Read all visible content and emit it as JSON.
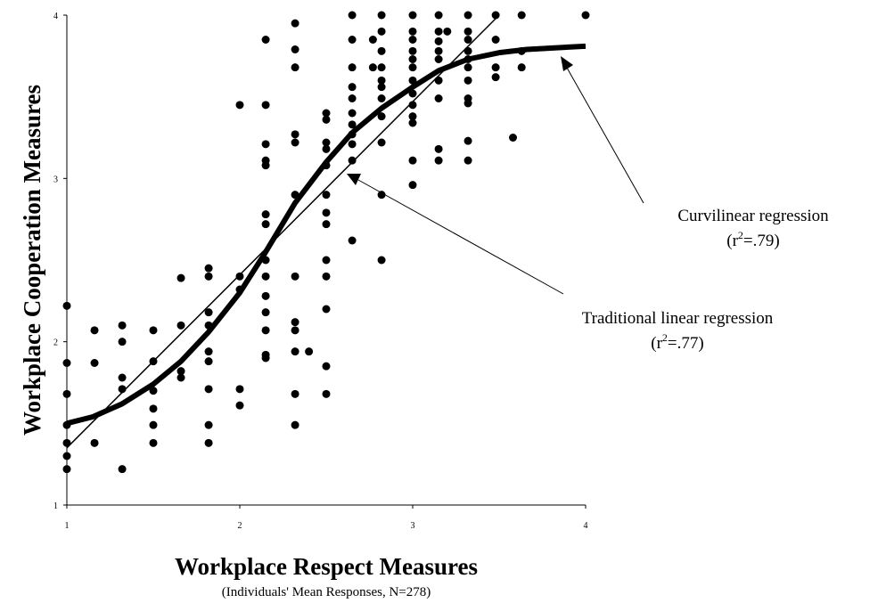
{
  "chart_data": {
    "type": "scatter",
    "xlabel": "Workplace Respect Measures",
    "subtitle": "(Individuals' Mean Responses, N=278)",
    "ylabel": "Workplace Cooperation Measures",
    "xlim": [
      1,
      4
    ],
    "ylim": [
      1,
      4
    ],
    "xticks": [
      1,
      2,
      3,
      4
    ],
    "yticks": [
      1,
      2,
      3,
      4
    ],
    "point_color": "#000000",
    "points": {
      "x": [
        1,
        1,
        1,
        1,
        1,
        1,
        1,
        1.16,
        1.16,
        1.16,
        1.32,
        1.32,
        1.32,
        1.32,
        1.32,
        1.5,
        1.5,
        1.5,
        1.5,
        1.5,
        1.5,
        1.66,
        1.66,
        1.66,
        1.66,
        1.82,
        1.82,
        1.82,
        1.82,
        1.82,
        1.82,
        1.82,
        1.82,
        1.82,
        2,
        2,
        2,
        2,
        2,
        2.15,
        2.15,
        2.15,
        2.15,
        2.15,
        2.15,
        2.15,
        2.15,
        2.15,
        2.15,
        2.15,
        2.15,
        2.15,
        2.15,
        2.32,
        2.32,
        2.32,
        2.32,
        2.32,
        2.32,
        2.32,
        2.32,
        2.32,
        2.32,
        2.32,
        2.32,
        2.4,
        2.5,
        2.5,
        2.5,
        2.5,
        2.5,
        2.5,
        2.5,
        2.5,
        2.5,
        2.5,
        2.5,
        2.5,
        2.5,
        2.65,
        2.65,
        2.65,
        2.65,
        2.65,
        2.65,
        2.65,
        2.65,
        2.65,
        2.65,
        2.65,
        2.82,
        2.82,
        2.82,
        2.82,
        2.82,
        2.82,
        2.82,
        2.82,
        2.82,
        2.82,
        2.82,
        2.77,
        2.77,
        3,
        3,
        3,
        3,
        3,
        3,
        3,
        3,
        3,
        3,
        3,
        3,
        3,
        3.15,
        3.15,
        3.15,
        3.15,
        3.15,
        3.15,
        3.15,
        3.15,
        3.15,
        3.2,
        3.32,
        3.32,
        3.32,
        3.32,
        3.32,
        3.32,
        3.32,
        3.32,
        3.32,
        3.32,
        3.32,
        3.48,
        3.48,
        3.48,
        3.48,
        3.58,
        3.63,
        3.63,
        3.63,
        4
      ],
      "y": [
        2.22,
        1.87,
        1.68,
        1.49,
        1.38,
        1.3,
        1.22,
        2.07,
        1.87,
        1.38,
        2.1,
        2,
        1.78,
        1.71,
        1.22,
        2.07,
        1.88,
        1.7,
        1.59,
        1.49,
        1.38,
        2.39,
        2.1,
        1.82,
        1.78,
        2.45,
        2.4,
        2.18,
        2.1,
        1.94,
        1.88,
        1.71,
        1.49,
        1.38,
        3.45,
        2.4,
        2.32,
        1.71,
        1.61,
        3.85,
        3.45,
        3.21,
        3.11,
        3.08,
        2.78,
        2.72,
        2.5,
        2.4,
        2.28,
        2.18,
        2.07,
        1.92,
        1.9,
        3.95,
        3.79,
        3.68,
        3.27,
        3.22,
        2.9,
        2.4,
        2.12,
        2.07,
        1.94,
        1.68,
        1.49,
        1.94,
        3.4,
        3.36,
        3.22,
        3.18,
        3.08,
        2.9,
        2.79,
        2.72,
        2.5,
        2.4,
        2.2,
        1.85,
        1.68,
        4,
        3.85,
        3.68,
        3.56,
        3.49,
        3.4,
        3.33,
        3.27,
        3.21,
        3.11,
        2.62,
        4,
        3.9,
        3.78,
        3.68,
        3.6,
        3.56,
        3.49,
        3.38,
        3.22,
        2.9,
        2.5,
        3.85,
        3.68,
        4,
        3.9,
        3.85,
        3.78,
        3.73,
        3.68,
        3.6,
        3.52,
        3.45,
        3.38,
        3.34,
        3.11,
        2.96,
        4,
        3.9,
        3.84,
        3.78,
        3.73,
        3.6,
        3.49,
        3.18,
        3.11,
        3.9,
        4,
        3.9,
        3.85,
        3.78,
        3.73,
        3.68,
        3.6,
        3.49,
        3.46,
        3.23,
        3.11,
        4,
        3.85,
        3.68,
        3.62,
        3.25,
        4,
        3.78,
        3.68,
        4
      ]
    },
    "series": [
      {
        "name": "Traditional linear regression",
        "color": "#000000",
        "width": 1.5,
        "r2": {
          "pre": "(r",
          "sup": "2",
          "post": "=.77)"
        },
        "x": [
          1,
          3.5
        ],
        "y": [
          1.35,
          4
        ]
      },
      {
        "name": "Curvilinear regression",
        "color": "#000000",
        "width": 6,
        "r2": {
          "pre": "(r",
          "sup": "2",
          "post": "=.79)"
        },
        "x": [
          1,
          1.15,
          1.32,
          1.5,
          1.66,
          1.82,
          2,
          2.15,
          2.32,
          2.5,
          2.65,
          2.82,
          3,
          3.15,
          3.32,
          3.5,
          3.66,
          4
        ],
        "y": [
          1.5,
          1.54,
          1.62,
          1.74,
          1.88,
          2.06,
          2.3,
          2.55,
          2.85,
          3.1,
          3.28,
          3.43,
          3.56,
          3.66,
          3.73,
          3.77,
          3.79,
          3.81
        ]
      }
    ]
  }
}
